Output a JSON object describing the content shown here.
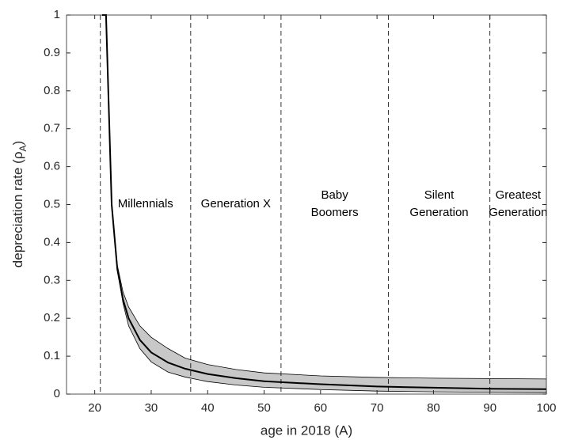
{
  "chart_data": {
    "type": "line",
    "xlabel": "age in 2018 (A)",
    "ylabel": {
      "text": "depreciation rate (ρ",
      "sub": "A",
      "end": ")"
    },
    "x": [
      21.3,
      22,
      23,
      24,
      25,
      26,
      28,
      30,
      33,
      36,
      40,
      45,
      50,
      60,
      70,
      80,
      90,
      100
    ],
    "values": [
      1,
      1,
      0.5,
      0.33,
      0.25,
      0.2,
      0.143,
      0.11,
      0.083,
      0.067,
      0.053,
      0.042,
      0.034,
      0.026,
      0.02,
      0.017,
      0.014,
      0.013
    ],
    "upper": [
      1,
      1,
      0.5,
      0.34,
      0.27,
      0.23,
      0.18,
      0.15,
      0.12,
      0.095,
      0.078,
      0.065,
      0.056,
      0.048,
      0.044,
      0.042,
      0.041,
      0.04
    ],
    "lower": [
      1,
      1,
      0.5,
      0.33,
      0.24,
      0.18,
      0.12,
      0.085,
      0.058,
      0.045,
      0.033,
      0.024,
      0.018,
      0.012,
      0.008,
      0.006,
      0.005,
      0.004
    ],
    "color": "#000000",
    "band_color": "#c8c8c8",
    "dividers": [
      21,
      37,
      53,
      72,
      90
    ],
    "regions": [
      [
        "Millennials"
      ],
      [
        "Generation X"
      ],
      [
        "Baby",
        "Boomers"
      ],
      [
        "Silent",
        "Generation"
      ],
      [
        "Greatest",
        "Generation"
      ]
    ],
    "xlim": [
      15,
      100
    ],
    "ylim": [
      0,
      1
    ],
    "xticks": [
      20,
      30,
      40,
      50,
      60,
      70,
      80,
      90,
      100
    ],
    "yticks": [
      0,
      0.1,
      0.2,
      0.3,
      0.4,
      0.5,
      0.6,
      0.7,
      0.8,
      0.9,
      1
    ],
    "grid": false
  }
}
